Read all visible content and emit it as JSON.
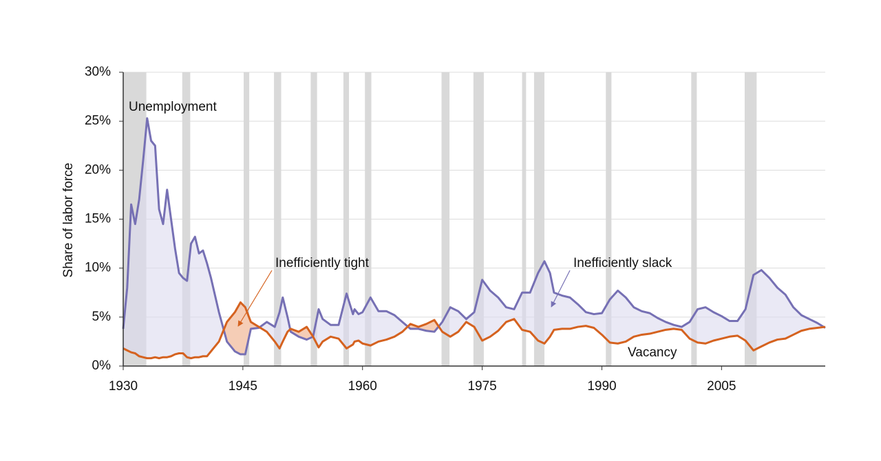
{
  "chart_data": {
    "type": "line",
    "ylabel": "Share of labor force",
    "annotations": [
      "Inefficiently tight",
      "Inefficiently slack"
    ],
    "x": [
      1930,
      1930.5,
      1931,
      1931.5,
      1932,
      1932.5,
      1933,
      1933.5,
      1934,
      1934.5,
      1935,
      1935.5,
      1936,
      1936.5,
      1937,
      1937.5,
      1938,
      1938.5,
      1939,
      1939.5,
      1940,
      1940.5,
      1941,
      1942,
      1943,
      1944,
      1944.7,
      1945.3,
      1946,
      1947,
      1948,
      1949,
      1949.6,
      1950,
      1950.6,
      1951,
      1952,
      1953,
      1953.8,
      1954.5,
      1955,
      1956,
      1957,
      1958,
      1958.8,
      1959,
      1959.5,
      1960,
      1961,
      1962,
      1963,
      1964,
      1965,
      1966,
      1967,
      1968,
      1969,
      1970,
      1971,
      1972,
      1973,
      1974,
      1975,
      1976,
      1977,
      1978,
      1979,
      1980,
      1981,
      1982,
      1982.8,
      1983.5,
      1984,
      1985,
      1986,
      1987,
      1988,
      1989,
      1990,
      1991,
      1992,
      1993,
      1994,
      1995,
      1996,
      1997,
      1998,
      1999,
      2000,
      2001,
      2002,
      2003,
      2004,
      2005,
      2006,
      2007,
      2008,
      2009,
      2010,
      2011,
      2012,
      2013,
      2014,
      2015,
      2016,
      2017,
      2018
    ],
    "series": [
      {
        "name": "Unemployment",
        "color": "#7670b4",
        "fill": "#dcdbee",
        "values": [
          3.8,
          8,
          16.5,
          14.5,
          17,
          21,
          25.3,
          23,
          22.5,
          16,
          14.5,
          18,
          15,
          12,
          9.5,
          9,
          8.7,
          12.5,
          13.2,
          11.5,
          11.8,
          10.5,
          9,
          5.5,
          2.5,
          1.5,
          1.2,
          1.2,
          3.8,
          3.9,
          4.5,
          4.0,
          5.5,
          7.0,
          5.0,
          3.5,
          3.0,
          2.7,
          3.0,
          5.8,
          4.8,
          4.2,
          4.2,
          7.4,
          5.3,
          5.8,
          5.3,
          5.5,
          7.0,
          5.6,
          5.6,
          5.2,
          4.5,
          3.8,
          3.8,
          3.6,
          3.5,
          4.5,
          6.0,
          5.6,
          4.8,
          5.5,
          8.8,
          7.7,
          7.0,
          6.0,
          5.8,
          7.5,
          7.5,
          9.5,
          10.7,
          9.5,
          7.5,
          7.2,
          7.0,
          6.3,
          5.5,
          5.3,
          5.4,
          6.8,
          7.7,
          7.0,
          6.0,
          5.6,
          5.4,
          4.9,
          4.5,
          4.2,
          4.0,
          4.5,
          5.8,
          6.0,
          5.5,
          5.1,
          4.6,
          4.6,
          5.8,
          9.3,
          9.8,
          9.0,
          8.0,
          7.3,
          6.0,
          5.2,
          4.8,
          4.4,
          3.9
        ]
      },
      {
        "name": "Vacancy",
        "color": "#d5621f",
        "fill": "#f5cdb6",
        "values": [
          1.8,
          1.6,
          1.4,
          1.3,
          1.0,
          0.9,
          0.8,
          0.8,
          0.9,
          0.8,
          0.9,
          0.9,
          1.0,
          1.2,
          1.3,
          1.3,
          0.9,
          0.8,
          0.9,
          0.9,
          1.0,
          1.0,
          1.5,
          2.5,
          4.5,
          5.5,
          6.5,
          6.0,
          4.5,
          4.0,
          3.5,
          2.5,
          1.8,
          2.5,
          3.5,
          3.8,
          3.5,
          4.0,
          3.0,
          1.9,
          2.5,
          3.0,
          2.8,
          1.8,
          2.2,
          2.5,
          2.6,
          2.3,
          2.1,
          2.5,
          2.7,
          3.0,
          3.5,
          4.3,
          4.0,
          4.3,
          4.7,
          3.5,
          3.0,
          3.5,
          4.5,
          4.0,
          2.6,
          3.0,
          3.6,
          4.5,
          4.8,
          3.7,
          3.5,
          2.6,
          2.3,
          3.0,
          3.7,
          3.8,
          3.8,
          4.0,
          4.1,
          3.9,
          3.2,
          2.4,
          2.3,
          2.5,
          3.0,
          3.2,
          3.3,
          3.5,
          3.7,
          3.8,
          3.7,
          2.8,
          2.4,
          2.3,
          2.6,
          2.8,
          3.0,
          3.1,
          2.6,
          1.6,
          2.0,
          2.4,
          2.7,
          2.8,
          3.2,
          3.6,
          3.8,
          3.9,
          4.0
        ]
      }
    ],
    "shaded_ranges": [
      [
        1930,
        1932.9
      ],
      [
        1937.4,
        1938.4
      ],
      [
        1945.1,
        1945.8
      ],
      [
        1948.9,
        1949.8
      ],
      [
        1953.5,
        1954.3
      ],
      [
        1957.6,
        1958.3
      ],
      [
        1960.3,
        1961.1
      ],
      [
        1969.9,
        1970.9
      ],
      [
        1973.9,
        1975.2
      ],
      [
        1980,
        1980.5
      ],
      [
        1981.5,
        1982.8
      ],
      [
        1990.5,
        1991.2
      ],
      [
        2001.2,
        2001.9
      ],
      [
        2007.9,
        2009.4
      ]
    ],
    "shade_color": "#d9d9d9",
    "xlim": [
      1930,
      2018
    ],
    "xticks": [
      1930,
      1945,
      1960,
      1975,
      1990,
      2005
    ],
    "ylim": [
      0,
      30
    ],
    "yticks": [
      {
        "value": 0,
        "label": "0%"
      },
      {
        "value": 5,
        "label": "5%"
      },
      {
        "value": 10,
        "label": "10%"
      },
      {
        "value": 15,
        "label": "15%"
      },
      {
        "value": 20,
        "label": "20%"
      },
      {
        "value": 25,
        "label": "25%"
      },
      {
        "value": 30,
        "label": "30%"
      }
    ],
    "grid": true
  }
}
